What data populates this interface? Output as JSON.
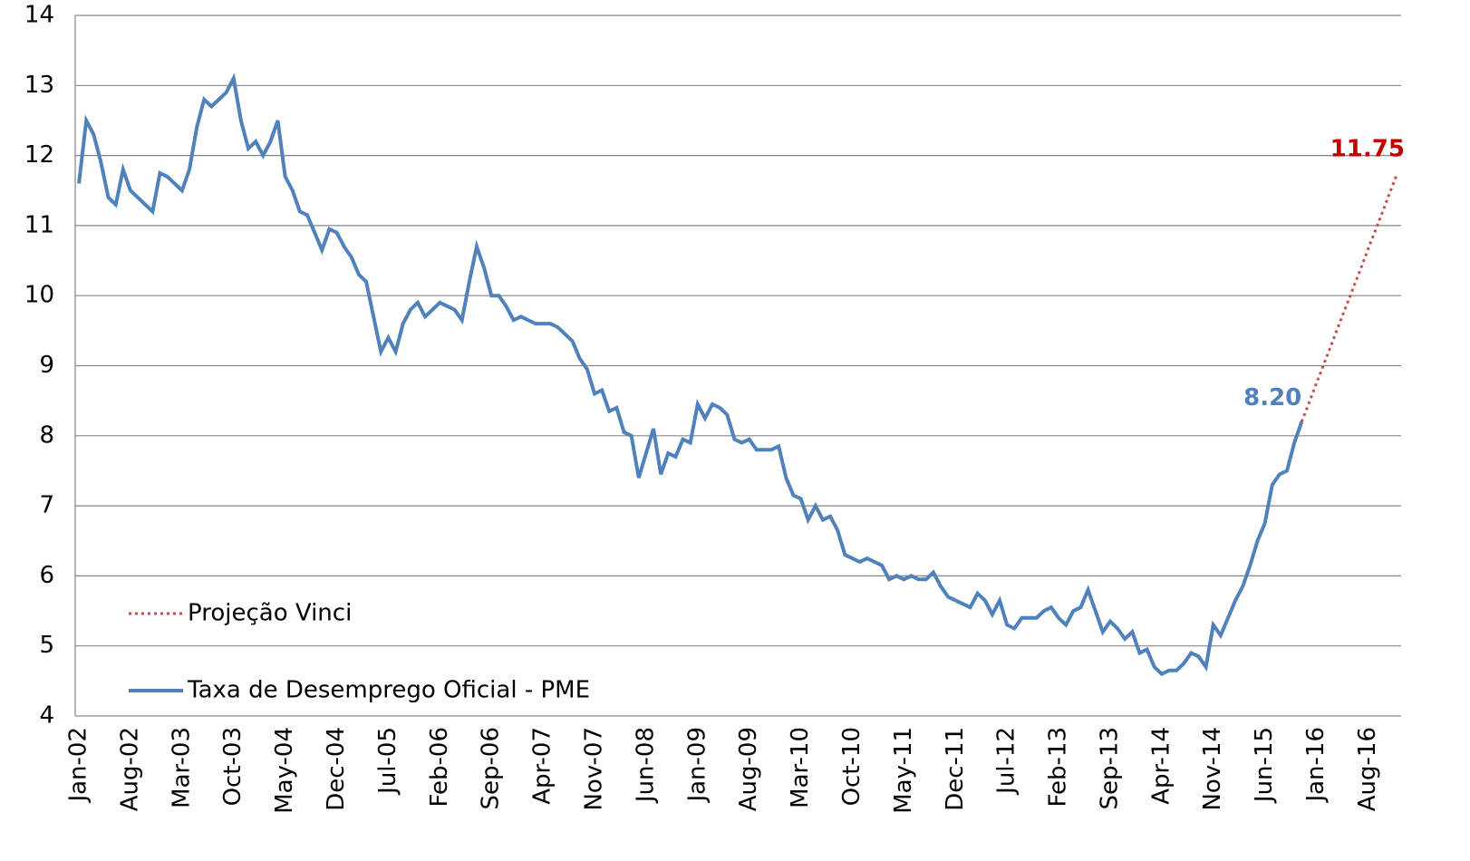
{
  "chart_data": {
    "type": "line",
    "categories": [
      "Jan-02",
      null,
      null,
      null,
      null,
      null,
      null,
      "Aug-02",
      null,
      null,
      null,
      null,
      null,
      null,
      "Mar-03",
      null,
      null,
      null,
      null,
      null,
      null,
      "Oct-03",
      null,
      null,
      null,
      null,
      null,
      null,
      "May-04",
      null,
      null,
      null,
      null,
      null,
      null,
      "Dec-04",
      null,
      null,
      null,
      null,
      null,
      null,
      "Jul-05",
      null,
      null,
      null,
      null,
      null,
      null,
      "Feb-06",
      null,
      null,
      null,
      null,
      null,
      null,
      "Sep-06",
      null,
      null,
      null,
      null,
      null,
      null,
      "Apr-07",
      null,
      null,
      null,
      null,
      null,
      null,
      "Nov-07",
      null,
      null,
      null,
      null,
      null,
      null,
      "Jun-08",
      null,
      null,
      null,
      null,
      null,
      null,
      "Jan-09",
      null,
      null,
      null,
      null,
      null,
      null,
      "Aug-09",
      null,
      null,
      null,
      null,
      null,
      null,
      "Mar-10",
      null,
      null,
      null,
      null,
      null,
      null,
      "Oct-10",
      null,
      null,
      null,
      null,
      null,
      null,
      "May-11",
      null,
      null,
      null,
      null,
      null,
      null,
      "Dec-11",
      null,
      null,
      null,
      null,
      null,
      null,
      "Jul-12",
      null,
      null,
      null,
      null,
      null,
      null,
      "Feb-13",
      null,
      null,
      null,
      null,
      null,
      null,
      "Sep-13",
      null,
      null,
      null,
      null,
      null,
      null,
      "Apr-14",
      null,
      null,
      null,
      null,
      null,
      null,
      "Nov-14",
      null,
      null,
      null,
      null,
      null,
      null,
      "Jun-15",
      null,
      null,
      null,
      null,
      null,
      null,
      "Jan-16",
      null,
      null,
      null,
      null,
      null,
      null,
      "Aug-16",
      null,
      null,
      null,
      null
    ],
    "series": [
      {
        "name": "Projeção Vinci",
        "color": "#c0504d",
        "dash": "dotted",
        "label_color": "#c00000",
        "label_last": true,
        "values": [
          null,
          null,
          null,
          null,
          null,
          null,
          null,
          null,
          null,
          null,
          null,
          null,
          null,
          null,
          null,
          null,
          null,
          null,
          null,
          null,
          null,
          null,
          null,
          null,
          null,
          null,
          null,
          null,
          null,
          null,
          null,
          null,
          null,
          null,
          null,
          null,
          null,
          null,
          null,
          null,
          null,
          null,
          null,
          null,
          null,
          null,
          null,
          null,
          null,
          null,
          null,
          null,
          null,
          null,
          null,
          null,
          null,
          null,
          null,
          null,
          null,
          null,
          null,
          null,
          null,
          null,
          null,
          null,
          null,
          null,
          null,
          null,
          null,
          null,
          null,
          null,
          null,
          null,
          null,
          null,
          null,
          null,
          null,
          null,
          null,
          null,
          null,
          null,
          null,
          null,
          null,
          null,
          null,
          null,
          null,
          null,
          null,
          null,
          null,
          null,
          null,
          null,
          null,
          null,
          null,
          null,
          null,
          null,
          null,
          null,
          null,
          null,
          null,
          null,
          null,
          null,
          null,
          null,
          null,
          null,
          null,
          null,
          null,
          null,
          null,
          null,
          null,
          null,
          null,
          null,
          null,
          null,
          null,
          null,
          null,
          null,
          null,
          null,
          null,
          null,
          null,
          null,
          null,
          null,
          null,
          null,
          null,
          null,
          null,
          null,
          null,
          null,
          null,
          null,
          null,
          null,
          null,
          null,
          null,
          null,
          null,
          null,
          null,
          null,
          null,
          null,
          8.2,
          8.47,
          8.75,
          9.02,
          9.29,
          9.57,
          9.84,
          10.11,
          10.38,
          10.66,
          10.93,
          11.2,
          11.48,
          11.75
        ]
      },
      {
        "name": "Taxa de Desemprego Oficial - PME",
        "color": "#4f81bd",
        "dash": "solid",
        "label_color": "#4f81bd",
        "values": [
          11.6,
          12.5,
          12.3,
          11.9,
          11.4,
          11.3,
          11.8,
          11.5,
          11.4,
          11.3,
          11.2,
          11.75,
          11.7,
          11.6,
          11.5,
          11.8,
          12.4,
          12.8,
          12.7,
          12.8,
          12.9,
          13.1,
          12.5,
          12.1,
          12.2,
          12.0,
          12.2,
          12.5,
          11.7,
          11.5,
          11.2,
          11.15,
          10.9,
          10.65,
          10.95,
          10.9,
          10.7,
          10.55,
          10.3,
          10.2,
          9.7,
          9.2,
          9.4,
          9.2,
          9.6,
          9.8,
          9.9,
          9.7,
          9.8,
          9.9,
          9.85,
          9.8,
          9.65,
          10.2,
          10.7,
          10.4,
          10.0,
          10.0,
          9.85,
          9.65,
          9.7,
          9.65,
          9.6,
          9.6,
          9.6,
          9.55,
          9.45,
          9.35,
          9.1,
          8.95,
          8.6,
          8.65,
          8.35,
          8.4,
          8.05,
          8.0,
          7.4,
          7.75,
          8.1,
          7.45,
          7.75,
          7.7,
          7.95,
          7.9,
          8.45,
          8.25,
          8.45,
          8.4,
          8.3,
          7.95,
          7.9,
          7.95,
          7.8,
          7.8,
          7.8,
          7.85,
          7.4,
          7.15,
          7.1,
          6.8,
          7.0,
          6.8,
          6.85,
          6.65,
          6.3,
          6.25,
          6.2,
          6.25,
          6.2,
          6.15,
          5.95,
          6.0,
          5.95,
          6.0,
          5.95,
          5.95,
          6.05,
          5.85,
          5.7,
          5.65,
          5.6,
          5.55,
          5.75,
          5.65,
          5.45,
          5.65,
          5.3,
          5.25,
          5.4,
          5.4,
          5.4,
          5.5,
          5.55,
          5.4,
          5.3,
          5.5,
          5.55,
          5.8,
          5.5,
          5.2,
          5.35,
          5.25,
          5.1,
          5.2,
          4.9,
          4.95,
          4.7,
          4.6,
          4.65,
          4.65,
          4.75,
          4.9,
          4.85,
          4.7,
          5.3,
          5.15,
          5.4,
          5.65,
          5.85,
          6.15,
          6.5,
          6.75,
          7.3,
          7.45,
          7.5,
          7.9,
          8.2,
          null,
          null,
          null,
          null,
          null,
          null,
          null,
          null,
          null,
          null,
          null,
          null,
          null
        ],
        "value_labels": [
          null,
          null,
          null,
          null,
          null,
          null,
          null,
          null,
          null,
          null,
          null,
          null,
          null,
          null,
          null,
          null,
          null,
          null,
          null,
          null,
          null,
          null,
          null,
          null,
          null,
          null,
          null,
          null,
          null,
          null,
          null,
          null,
          null,
          null,
          null,
          null,
          null,
          null,
          null,
          null,
          null,
          null,
          null,
          null,
          null,
          null,
          null,
          null,
          null,
          null,
          null,
          null,
          null,
          null,
          null,
          null,
          null,
          null,
          null,
          null,
          null,
          null,
          null,
          null,
          null,
          null,
          null,
          null,
          null,
          null,
          null,
          null,
          null,
          null,
          null,
          null,
          null,
          null,
          null,
          null,
          null,
          null,
          null,
          null,
          null,
          null,
          null,
          null,
          null,
          null,
          null,
          null,
          null,
          null,
          null,
          null,
          null,
          null,
          null,
          null,
          null,
          null,
          null,
          null,
          null,
          null,
          null,
          null,
          null,
          null,
          null,
          null,
          null,
          null,
          null,
          null,
          null,
          null,
          null,
          null,
          null,
          null,
          null,
          null,
          null,
          null,
          null,
          null,
          null,
          null,
          null,
          null,
          null,
          null,
          null,
          null,
          null,
          null,
          null,
          null,
          null,
          null,
          null,
          null,
          null,
          null,
          null,
          null,
          null,
          null,
          null,
          null,
          null,
          null,
          null,
          null,
          null,
          null,
          null,
          null,
          null,
          null,
          null,
          null,
          null,
          null,
          "8.20",
          null,
          null,
          null,
          null,
          null,
          null,
          null,
          null,
          null,
          null,
          null,
          null,
          null
        ]
      }
    ],
    "ylim": [
      4,
      14
    ],
    "yticks": [
      4,
      5,
      6,
      7,
      8,
      9,
      10,
      11,
      12,
      13,
      14
    ],
    "grid": true,
    "legend": "lower left"
  }
}
